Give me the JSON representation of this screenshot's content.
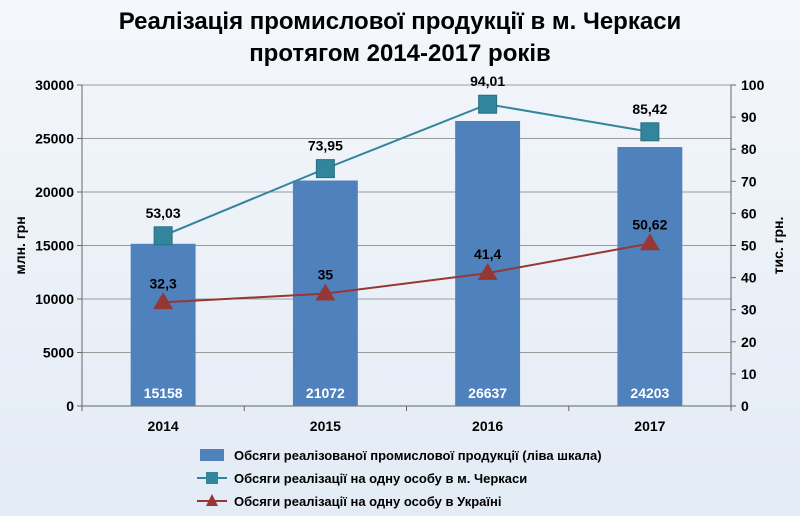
{
  "chart_data": {
    "type": "bar",
    "title_line1": "Реалізація промислової продукції в м. Черкаси",
    "title_line2": "протягом 2014-2017 років",
    "ylabel_left": "млн. грн",
    "ylabel_right": "тис. грн.",
    "categories": [
      "2014",
      "2015",
      "2016",
      "2017"
    ],
    "ylim_left": [
      0,
      30000
    ],
    "ylim_right": [
      0,
      100
    ],
    "yticks_left": [
      "0",
      "5000",
      "10000",
      "15000",
      "20000",
      "25000",
      "30000"
    ],
    "yticks_right": [
      "0",
      "10",
      "20",
      "30",
      "40",
      "50",
      "60",
      "70",
      "80",
      "90",
      "100"
    ],
    "grid": true,
    "legend_position": "bottom",
    "series": [
      {
        "name": "Обсяги реалізованої промислової продукції (ліва шкала)",
        "type": "bar",
        "axis": "left",
        "color": "#4f81bd",
        "values": [
          15158,
          21072,
          26637,
          24203
        ],
        "labels": [
          "15158",
          "21072",
          "26637",
          "24203"
        ]
      },
      {
        "name": "Обсяги реалізації на одну особу в м. Черкаси",
        "type": "line",
        "axis": "right",
        "marker": "square",
        "color": "#31859c",
        "values": [
          53.03,
          73.95,
          94.01,
          85.42
        ],
        "labels": [
          "53,03",
          "73,95",
          "94,01",
          "85,42"
        ]
      },
      {
        "name": "Обсяги реалізації на одну особу в Україні",
        "type": "line",
        "axis": "right",
        "marker": "triangle",
        "color": "#953735",
        "values": [
          32.3,
          35,
          41.4,
          50.62
        ],
        "labels": [
          "32,3",
          "35",
          "41,4",
          "50,62"
        ]
      }
    ]
  }
}
